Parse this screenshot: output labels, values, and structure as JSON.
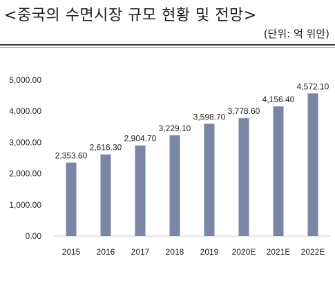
{
  "header": {
    "title": "<중국의 수면시장 규모 현황 및 전망>",
    "unit": "(단위: 억 위안)"
  },
  "chart_data": {
    "type": "bar",
    "title": "<중국의 수면시장 규모 현황 및 전망>",
    "xlabel": "",
    "ylabel": "",
    "unit": "(단위: 억 위안)",
    "categories": [
      "2015",
      "2016",
      "2017",
      "2018",
      "2019",
      "2020E",
      "2021E",
      "2022E"
    ],
    "values": [
      2353.6,
      2616.3,
      2904.7,
      3229.1,
      3598.7,
      3778.6,
      4156.4,
      4572.1
    ],
    "value_labels": [
      "2,353.60",
      "2,616.30",
      "2,904.70",
      "3,229.10",
      "3,598.70",
      "3,778.60",
      "4,156.40",
      "4,572.10"
    ],
    "yticks": [
      0,
      1000,
      2000,
      3000,
      4000,
      5000
    ],
    "ytick_labels": [
      "0.00",
      "1,000.00",
      "2,000.00",
      "3,000.00",
      "4,000.00",
      "5,000.00"
    ],
    "ylim": [
      0,
      5000
    ],
    "grid": false,
    "legend": "none",
    "bar_color": "#7a86a6"
  }
}
